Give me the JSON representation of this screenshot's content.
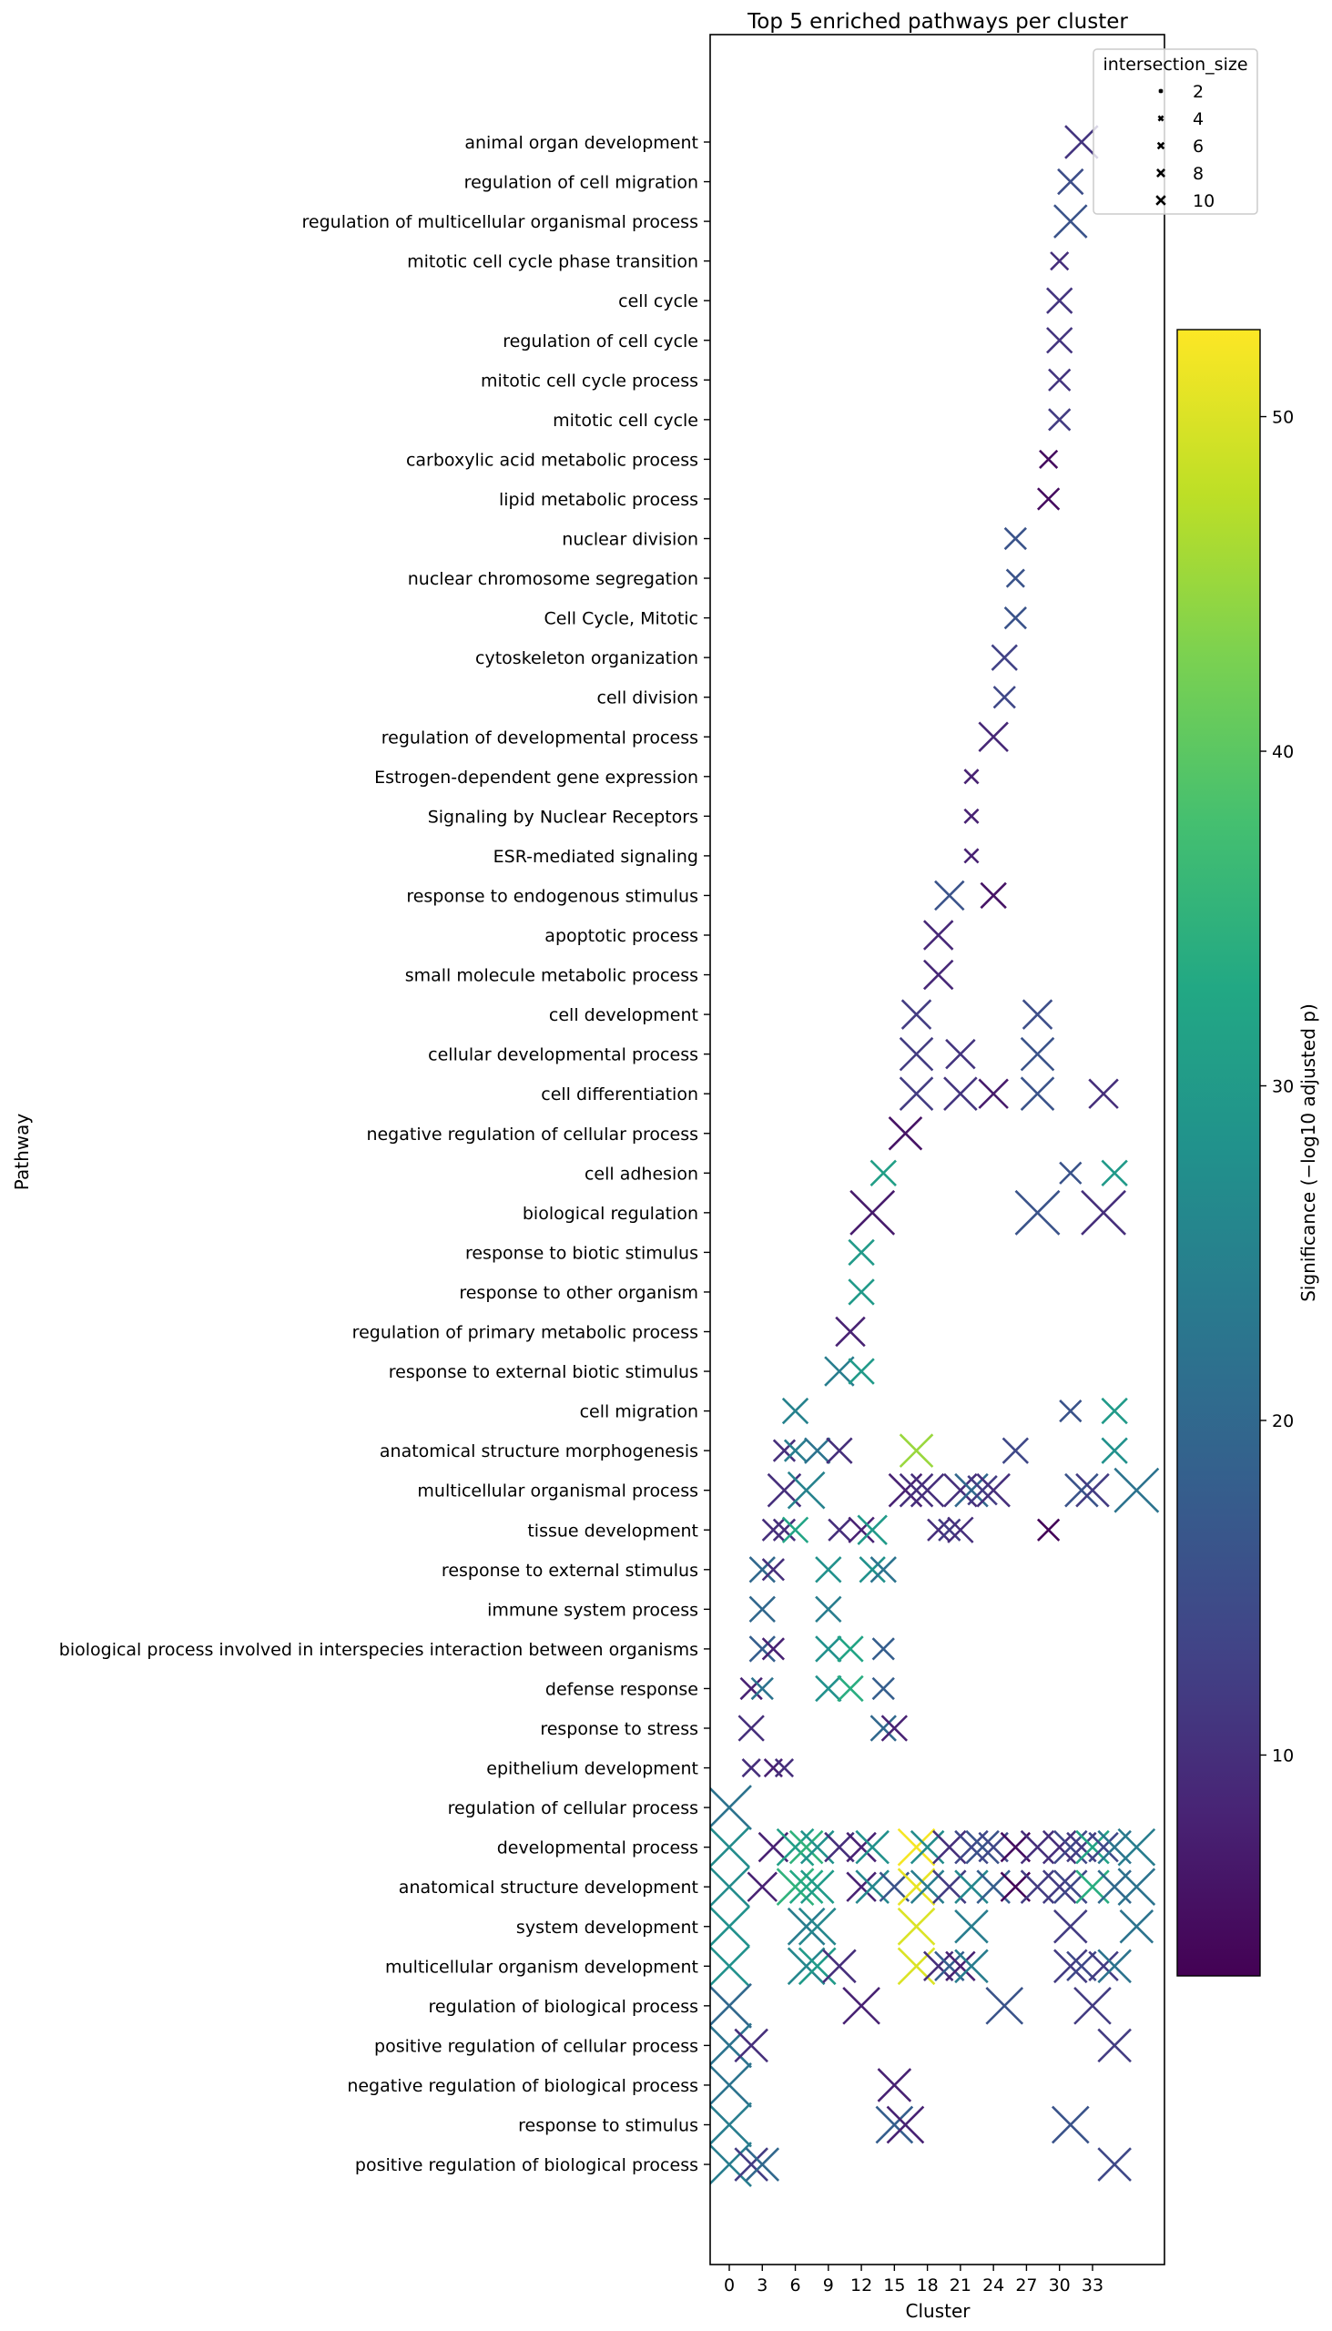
{
  "chart_data": {
    "type": "scatter",
    "title": "Top 5 enriched pathways per cluster",
    "xlabel": "Cluster",
    "ylabel": "Pathway",
    "xlim": [
      -1.75,
      39.5
    ],
    "x_ticks": [
      0,
      3,
      6,
      9,
      12,
      15,
      18,
      21,
      24,
      27,
      30,
      33
    ],
    "grid": false,
    "marker": "x",
    "color_scale": {
      "name": "viridis",
      "label": "Significance (−log10 adjusted p)",
      "range": [
        3.4,
        52.6
      ],
      "ticks": [
        10,
        20,
        30,
        40,
        50
      ]
    },
    "size_legend": {
      "title": "intersection_size",
      "placement": "top-right",
      "entries": [
        2,
        4,
        6,
        8,
        10
      ]
    },
    "pathways": [
      "animal organ development",
      "regulation of cell migration",
      "regulation of multicellular organismal process",
      "mitotic cell cycle phase transition",
      "cell cycle",
      "regulation of cell cycle",
      "mitotic cell cycle process",
      "mitotic cell cycle",
      "carboxylic acid metabolic process",
      "lipid metabolic process",
      "nuclear division",
      "nuclear chromosome segregation",
      "Cell Cycle, Mitotic",
      "cytoskeleton organization",
      "cell division",
      "regulation of developmental process",
      "Estrogen-dependent gene expression",
      "Signaling by Nuclear Receptors",
      "ESR-mediated signaling",
      "response to endogenous stimulus",
      "apoptotic process",
      "small molecule metabolic process",
      "cell development",
      "cellular developmental process",
      "cell differentiation",
      "negative regulation of cellular process",
      "cell adhesion",
      "biological regulation",
      "response to biotic stimulus",
      "response to other organism",
      "regulation of primary metabolic process",
      "response to external biotic stimulus",
      "cell migration",
      "anatomical structure morphogenesis",
      "multicellular organismal process",
      "tissue development",
      "response to external stimulus",
      "immune system process",
      "biological process involved in interspecies interaction between organisms",
      "defense response",
      "response to stress",
      "epithelium development",
      "regulation of cellular process",
      "developmental process",
      "anatomical structure development",
      "system development",
      "multicellular organism development",
      "regulation of biological process",
      "positive regulation of cellular process",
      "negative regulation of biological process",
      "response to stimulus",
      "positive regulation of biological process"
    ],
    "points_columns": [
      "cluster",
      "pathway_index",
      "significance",
      "intersection_size"
    ],
    "points": [
      [
        32,
        0,
        11,
        7
      ],
      [
        31,
        1,
        15,
        5
      ],
      [
        31,
        2,
        16,
        7
      ],
      [
        30,
        3,
        10,
        3
      ],
      [
        30,
        4,
        11,
        5
      ],
      [
        30,
        5,
        11,
        5
      ],
      [
        30,
        6,
        11,
        4
      ],
      [
        30,
        7,
        12,
        4
      ],
      [
        29,
        8,
        5,
        3
      ],
      [
        29,
        9,
        5,
        4
      ],
      [
        26,
        10,
        16,
        4
      ],
      [
        26,
        11,
        16,
        3
      ],
      [
        26,
        12,
        16,
        4
      ],
      [
        25,
        13,
        13,
        5
      ],
      [
        25,
        14,
        14,
        4
      ],
      [
        24,
        15,
        9,
        6
      ],
      [
        22,
        16,
        8,
        2
      ],
      [
        22,
        17,
        8,
        2
      ],
      [
        22,
        18,
        8,
        2
      ],
      [
        20,
        19,
        16,
        6
      ],
      [
        24,
        19,
        6,
        5
      ],
      [
        19,
        20,
        9,
        6
      ],
      [
        19,
        21,
        9,
        6
      ],
      [
        17,
        22,
        12,
        6
      ],
      [
        28,
        22,
        15,
        6
      ],
      [
        17,
        23,
        12,
        7
      ],
      [
        21,
        23,
        11,
        6
      ],
      [
        28,
        23,
        16,
        7
      ],
      [
        17,
        24,
        12,
        7
      ],
      [
        21,
        24,
        11,
        7
      ],
      [
        24,
        24,
        7,
        6
      ],
      [
        28,
        24,
        16,
        7
      ],
      [
        34,
        24,
        10,
        6
      ],
      [
        16,
        25,
        6,
        7
      ],
      [
        14,
        26,
        31,
        5
      ],
      [
        31,
        26,
        16,
        4
      ],
      [
        35,
        26,
        30,
        5
      ],
      [
        13,
        27,
        7,
        10
      ],
      [
        28,
        27,
        16,
        10
      ],
      [
        34,
        27,
        10,
        10
      ],
      [
        12,
        28,
        30,
        5
      ],
      [
        12,
        29,
        30,
        5
      ],
      [
        11,
        30,
        8,
        6
      ],
      [
        10,
        31,
        24,
        6
      ],
      [
        12,
        31,
        30,
        5
      ],
      [
        6,
        32,
        25,
        5
      ],
      [
        31,
        32,
        16,
        4
      ],
      [
        35,
        32,
        30,
        5
      ],
      [
        5,
        33,
        10,
        4
      ],
      [
        6,
        33,
        24,
        4
      ],
      [
        8,
        33,
        22,
        5
      ],
      [
        10,
        33,
        10,
        5
      ],
      [
        17,
        33,
        45,
        7
      ],
      [
        26,
        33,
        14,
        5
      ],
      [
        35,
        33,
        28,
        5
      ],
      [
        5,
        34,
        10,
        7
      ],
      [
        7,
        34,
        25,
        8
      ],
      [
        16,
        34,
        8,
        7
      ],
      [
        17,
        34,
        10,
        7
      ],
      [
        18,
        34,
        10,
        7
      ],
      [
        21,
        34,
        10,
        7
      ],
      [
        22,
        34,
        20,
        7
      ],
      [
        23,
        34,
        12,
        6
      ],
      [
        24,
        34,
        10,
        7
      ],
      [
        32,
        34,
        16,
        7
      ],
      [
        33,
        34,
        12,
        7
      ],
      [
        37,
        34,
        22,
        10
      ],
      [
        4,
        35,
        10,
        4
      ],
      [
        5,
        35,
        10,
        4
      ],
      [
        6,
        35,
        32,
        5
      ],
      [
        10,
        35,
        10,
        4
      ],
      [
        12,
        35,
        8,
        5
      ],
      [
        13,
        35,
        30,
        6
      ],
      [
        19,
        35,
        10,
        4
      ],
      [
        20,
        35,
        12,
        4
      ],
      [
        21,
        35,
        10,
        5
      ],
      [
        29,
        35,
        4,
        4
      ],
      [
        3,
        36,
        20,
        5
      ],
      [
        4,
        36,
        10,
        4
      ],
      [
        9,
        36,
        28,
        5
      ],
      [
        13,
        36,
        28,
        5
      ],
      [
        14,
        36,
        22,
        5
      ],
      [
        3,
        37,
        20,
        5
      ],
      [
        9,
        37,
        24,
        5
      ],
      [
        3,
        38,
        18,
        5
      ],
      [
        4,
        38,
        8,
        4
      ],
      [
        9,
        38,
        28,
        5
      ],
      [
        11,
        38,
        32,
        5
      ],
      [
        14,
        38,
        18,
        4
      ],
      [
        2,
        39,
        8,
        4
      ],
      [
        3,
        39,
        22,
        4
      ],
      [
        9,
        39,
        28,
        5
      ],
      [
        11,
        39,
        34,
        5
      ],
      [
        14,
        39,
        18,
        4
      ],
      [
        2,
        40,
        10,
        5
      ],
      [
        14,
        40,
        20,
        5
      ],
      [
        15,
        40,
        8,
        5
      ],
      [
        2,
        41,
        10,
        3
      ],
      [
        4,
        41,
        8,
        3
      ],
      [
        5,
        41,
        10,
        3
      ],
      [
        0,
        42,
        22,
        10
      ],
      [
        0,
        43,
        27,
        9
      ],
      [
        4,
        43,
        8,
        6
      ],
      [
        6,
        43,
        31,
        8
      ],
      [
        7,
        43,
        35,
        7
      ],
      [
        8,
        43,
        28,
        7
      ],
      [
        10,
        43,
        10,
        6
      ],
      [
        12,
        43,
        8,
        6
      ],
      [
        13,
        43,
        28,
        7
      ],
      [
        17,
        43,
        52,
        8
      ],
      [
        18,
        43,
        27,
        7
      ],
      [
        20,
        43,
        10,
        7
      ],
      [
        22,
        43,
        14,
        7
      ],
      [
        23,
        43,
        16,
        7
      ],
      [
        24,
        43,
        14,
        6
      ],
      [
        26,
        43,
        5,
        6
      ],
      [
        28,
        43,
        10,
        7
      ],
      [
        30,
        43,
        10,
        7
      ],
      [
        31,
        43,
        14,
        7
      ],
      [
        32,
        43,
        12,
        6
      ],
      [
        33,
        43,
        32,
        7
      ],
      [
        34,
        43,
        14,
        6
      ],
      [
        35,
        43,
        22,
        7
      ],
      [
        37,
        43,
        24,
        8
      ],
      [
        0,
        44,
        27,
        9
      ],
      [
        3,
        44,
        8,
        6
      ],
      [
        6,
        44,
        35,
        8
      ],
      [
        7,
        44,
        33,
        7
      ],
      [
        8,
        44,
        30,
        7
      ],
      [
        12,
        44,
        8,
        6
      ],
      [
        13,
        44,
        26,
        7
      ],
      [
        15,
        44,
        16,
        6
      ],
      [
        17,
        44,
        51,
        8
      ],
      [
        18,
        44,
        24,
        7
      ],
      [
        20,
        44,
        12,
        7
      ],
      [
        22,
        44,
        26,
        7
      ],
      [
        24,
        44,
        18,
        7
      ],
      [
        26,
        44,
        4,
        6
      ],
      [
        28,
        44,
        12,
        7
      ],
      [
        30,
        44,
        12,
        7
      ],
      [
        31,
        44,
        14,
        7
      ],
      [
        33,
        44,
        34,
        7
      ],
      [
        35,
        44,
        20,
        7
      ],
      [
        37,
        44,
        22,
        8
      ],
      [
        0,
        45,
        28,
        9
      ],
      [
        7,
        45,
        24,
        8
      ],
      [
        8,
        45,
        26,
        8
      ],
      [
        17,
        45,
        50,
        8
      ],
      [
        22,
        45,
        24,
        7
      ],
      [
        31,
        45,
        12,
        7
      ],
      [
        37,
        45,
        22,
        7
      ],
      [
        0,
        46,
        28,
        9
      ],
      [
        7,
        46,
        26,
        8
      ],
      [
        8,
        46,
        30,
        8
      ],
      [
        10,
        46,
        10,
        7
      ],
      [
        17,
        46,
        50,
        8
      ],
      [
        19,
        46,
        10,
        6
      ],
      [
        20,
        46,
        18,
        6
      ],
      [
        21,
        46,
        8,
        6
      ],
      [
        22,
        46,
        24,
        7
      ],
      [
        31,
        46,
        12,
        7
      ],
      [
        32,
        46,
        14,
        6
      ],
      [
        34,
        46,
        12,
        6
      ],
      [
        35,
        46,
        22,
        7
      ],
      [
        0,
        47,
        20,
        10
      ],
      [
        12,
        47,
        8,
        8
      ],
      [
        25,
        47,
        16,
        8
      ],
      [
        33,
        47,
        12,
        8
      ],
      [
        0,
        48,
        22,
        10
      ],
      [
        2,
        48,
        10,
        7
      ],
      [
        35,
        48,
        12,
        7
      ],
      [
        0,
        49,
        22,
        10
      ],
      [
        15,
        49,
        8,
        7
      ],
      [
        0,
        50,
        24,
        10
      ],
      [
        15,
        50,
        18,
        8
      ],
      [
        16,
        50,
        8,
        8
      ],
      [
        31,
        50,
        16,
        8
      ],
      [
        0,
        51,
        24,
        10
      ],
      [
        2,
        51,
        12,
        7
      ],
      [
        3,
        51,
        20,
        7
      ],
      [
        35,
        51,
        14,
        7
      ]
    ]
  }
}
